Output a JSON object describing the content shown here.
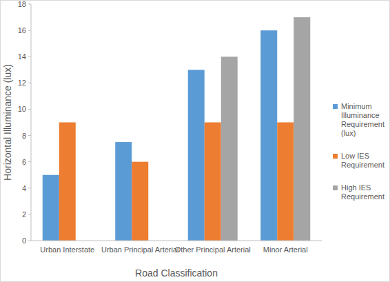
{
  "chart_data": {
    "type": "bar",
    "x_label": "Road Classification",
    "y_label": "Horizontal Illuminance (lux)",
    "categories": [
      "Urban Interstate",
      "Urban Principal Arterial",
      "Other Principal Arterial",
      "Minor Arterial"
    ],
    "series": [
      {
        "name": "Minimum Illuminance Requirement (lux)",
        "color": "#5b9bd5",
        "values": [
          5,
          7.5,
          13,
          16
        ]
      },
      {
        "name": "Low IES Requirement",
        "color": "#ed7d31",
        "values": [
          9,
          6,
          9,
          9
        ]
      },
      {
        "name": "High IES Requirement",
        "color": "#a5a5a5",
        "values": [
          null,
          null,
          14,
          17
        ]
      }
    ],
    "ylim": [
      0,
      18
    ],
    "yticks": [
      0,
      2,
      4,
      6,
      8,
      10,
      12,
      14,
      16,
      18
    ],
    "grid": false,
    "legend": "right"
  }
}
